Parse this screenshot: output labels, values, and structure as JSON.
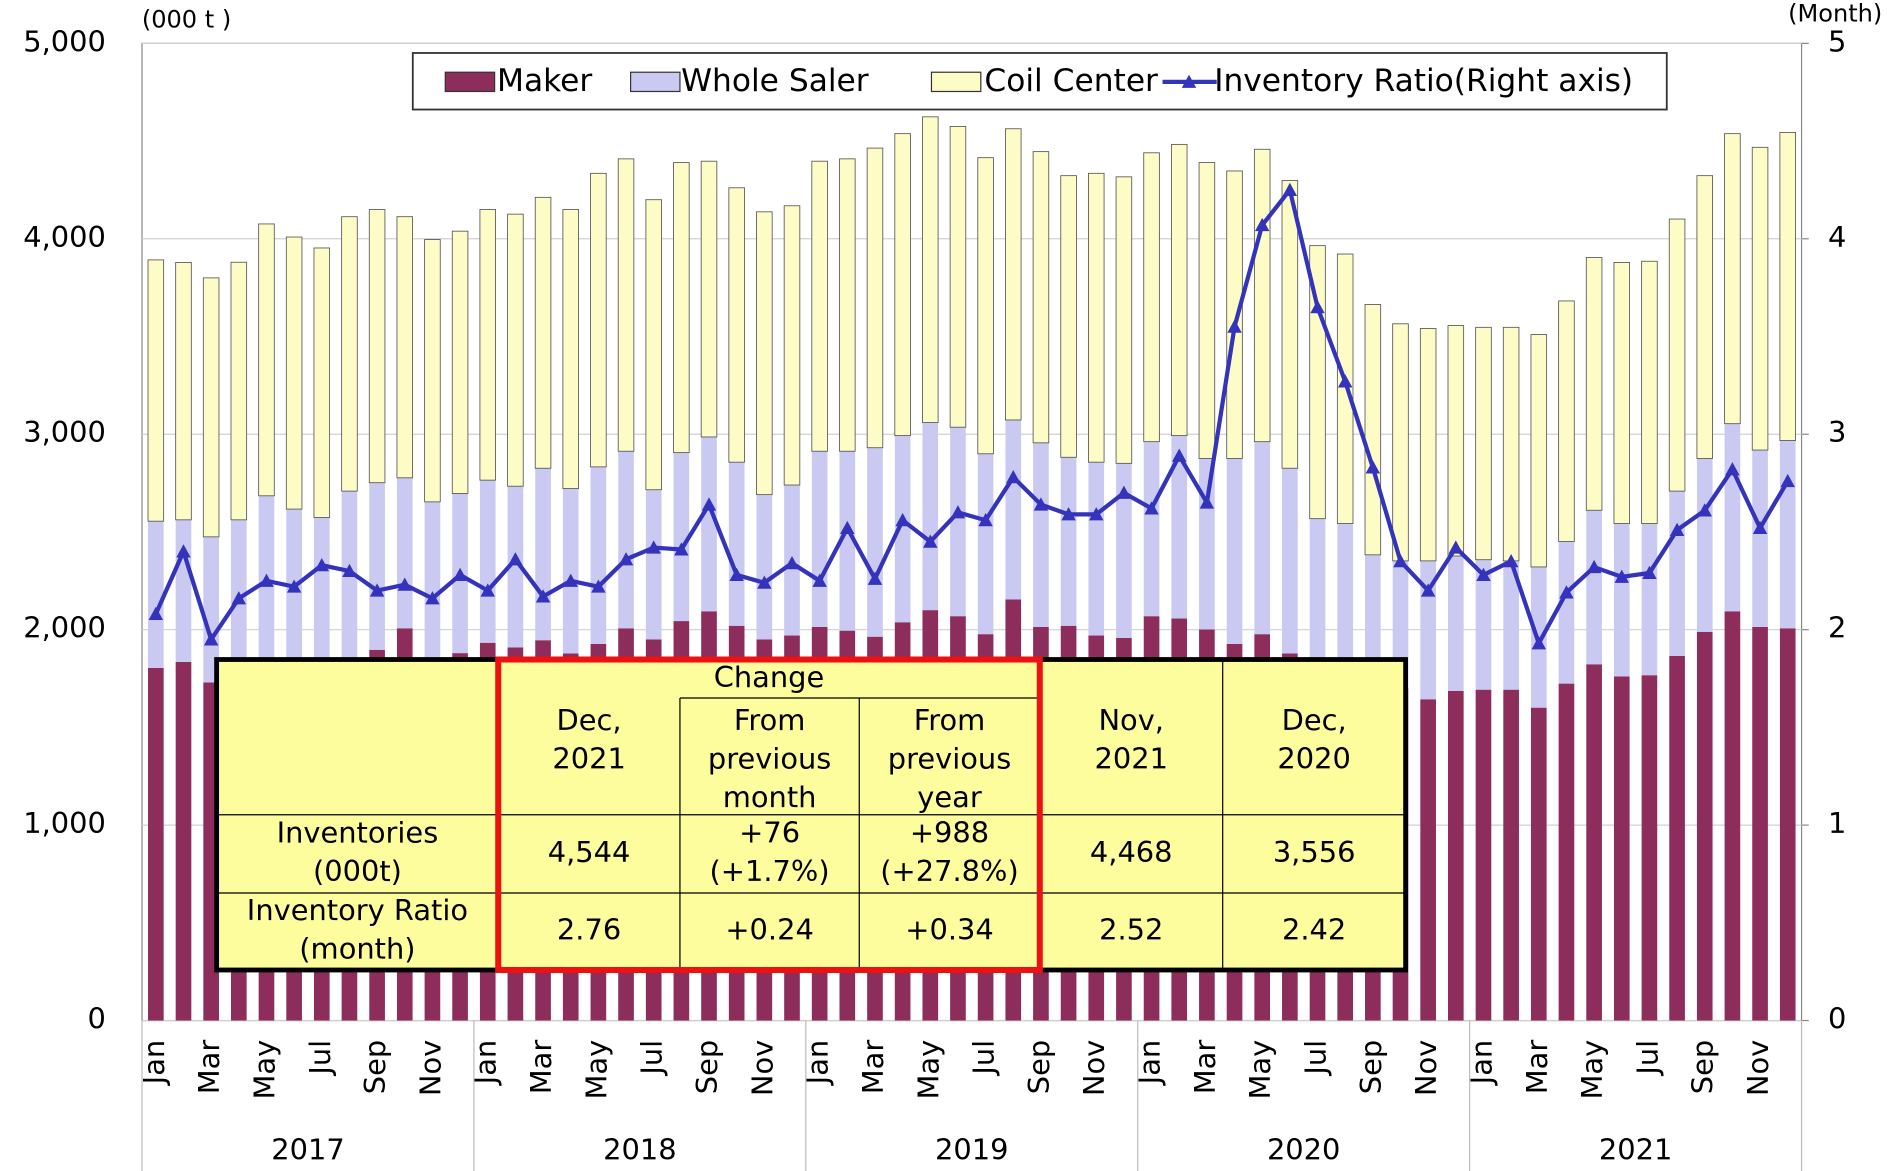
{
  "chart_data": {
    "type": "bar",
    "stacked": true,
    "y_label": "(000 t )",
    "y2_label": "(Month)",
    "categories": [
      "Jan",
      null,
      "Mar",
      null,
      "May",
      null,
      "Jul",
      null,
      "Sep",
      null,
      "Nov",
      null,
      "Jan",
      null,
      "Mar",
      null,
      "May",
      null,
      "Jul",
      null,
      "Sep",
      null,
      "Nov",
      null,
      "Jan",
      null,
      "Mar",
      null,
      "May",
      null,
      "Jul",
      null,
      "Sep",
      null,
      "Nov",
      null,
      "Jan",
      null,
      "Mar",
      null,
      "May",
      null,
      "Jul",
      null,
      "Sep",
      null,
      "Nov",
      null,
      "Jan",
      null,
      "Mar",
      null,
      "May",
      null,
      "Jul",
      null,
      "Sep",
      null,
      "Nov",
      null
    ],
    "years": [
      "2017",
      "2018",
      "2019",
      "2020",
      "2021"
    ],
    "ylim": [
      0,
      5000
    ],
    "yticks": [
      0,
      {
        "value": 1000,
        "label": "1,000"
      },
      {
        "value": 2000,
        "label": "2,000"
      },
      {
        "value": 3000,
        "label": "3,000"
      },
      {
        "value": 4000,
        "label": "4,000"
      },
      {
        "value": 5000,
        "label": "5,000"
      }
    ],
    "y2lim": [
      0,
      5
    ],
    "y2ticks": [
      0,
      1,
      2,
      3,
      4,
      5
    ],
    "legend": "top",
    "series": [
      {
        "name": "Maker",
        "color": "#8c2d5c",
        "values": [
          1804,
          1835,
          1730,
          1750,
          1800,
          1800,
          1780,
          1830,
          1897,
          2007,
          1850,
          1880,
          1933,
          1909,
          1946,
          1878,
          1927,
          2007,
          1950,
          2044,
          2094,
          2020,
          1950,
          1970,
          2014,
          1995,
          1964,
          2038,
          2100,
          2069,
          1977,
          2155,
          2014,
          2020,
          1970,
          1958,
          2069,
          2057,
          2001,
          1927,
          1977,
          1878,
          1850,
          1800,
          1750,
          1700,
          1644,
          1687,
          1693,
          1693,
          1601,
          1724,
          1823,
          1761,
          1767,
          1866,
          1989,
          2094,
          2014,
          2007
        ]
      },
      {
        "name": "Whole Saler",
        "color": "#c9c9f2",
        "values": [
          751,
          727,
          745,
          812,
          885,
          817,
          794,
          879,
          855,
          770,
          804,
          817,
          832,
          825,
          880,
          844,
          906,
          906,
          766,
          862,
          892,
          837,
          741,
          770,
          899,
          918,
          967,
          955,
          960,
          967,
          923,
          918,
          942,
          862,
          887,
          893,
          893,
          936,
          875,
          949,
          985,
          948,
          718,
          743,
          633,
          652,
          708,
          690,
          665,
          659,
          720,
          727,
          788,
          782,
          776,
          843,
          887,
          960,
          905,
          961
        ]
      },
      {
        "name": "Coil Center",
        "color": "#fdfcc6",
        "values": [
          1337,
          1317,
          1325,
          1318,
          1391,
          1392,
          1379,
          1404,
          1398,
          1336,
          1342,
          1342,
          1385,
          1392,
          1386,
          1428,
          1502,
          1496,
          1484,
          1484,
          1411,
          1404,
          1447,
          1429,
          1484,
          1496,
          1533,
          1545,
          1564,
          1539,
          1515,
          1490,
          1490,
          1441,
          1478,
          1466,
          1478,
          1490,
          1514,
          1471,
          1496,
          1472,
          1397,
          1379,
          1281,
          1213,
          1189,
          1179,
          1189,
          1195,
          1189,
          1231,
          1293,
          1336,
          1342,
          1392,
          1447,
          1484,
          1549,
          1576
        ]
      },
      {
        "name": "Inventory Ratio(Right axis)",
        "type": "line",
        "axis": "y2",
        "color": "#3333bb",
        "values": [
          2.08,
          2.4,
          1.95,
          2.16,
          2.25,
          2.22,
          2.33,
          2.3,
          2.2,
          2.23,
          2.16,
          2.28,
          2.2,
          2.36,
          2.17,
          2.25,
          2.22,
          2.36,
          2.42,
          2.41,
          2.64,
          2.28,
          2.24,
          2.34,
          2.25,
          2.52,
          2.26,
          2.56,
          2.45,
          2.6,
          2.56,
          2.78,
          2.64,
          2.59,
          2.59,
          2.7,
          2.62,
          2.89,
          2.65,
          3.55,
          4.07,
          4.25,
          3.65,
          3.27,
          2.83,
          2.35,
          2.2,
          2.42,
          2.28,
          2.35,
          1.93,
          2.19,
          2.32,
          2.27,
          2.29,
          2.51,
          2.61,
          2.82,
          2.52,
          2.76
        ]
      }
    ]
  },
  "table": {
    "group_header": "Change",
    "columns": [
      "Dec,\n2021",
      "From\nprevious\nmonth",
      "From\nprevious\nyear",
      "Nov,\n2021",
      "Dec,\n2020"
    ],
    "rows": [
      [
        "Inventories\n(000t)",
        "4,544",
        "+76\n(+1.7%)",
        "+988\n(+27.8%)",
        "4,468",
        "3,556"
      ],
      [
        "Inventory Ratio\n(month)",
        "2.76",
        "+0.24",
        "+0.34",
        "2.52",
        "2.42"
      ]
    ]
  }
}
